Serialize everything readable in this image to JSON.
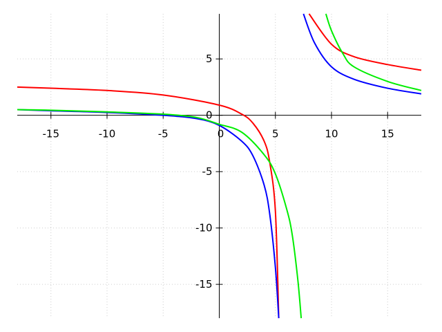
{
  "chart_data": {
    "type": "line",
    "title": "",
    "xlabel": "",
    "ylabel": "",
    "xlim": [
      -18,
      18
    ],
    "ylim": [
      -18,
      9
    ],
    "grid": true,
    "x_ticks": [
      {
        "value": -15,
        "label": "-15"
      },
      {
        "value": -10,
        "label": "-10"
      },
      {
        "value": -5,
        "label": "-5"
      },
      {
        "value": 0,
        "label": "0"
      },
      {
        "value": 5,
        "label": "5"
      },
      {
        "value": 10,
        "label": "10"
      },
      {
        "value": 15,
        "label": "15"
      }
    ],
    "y_ticks": [
      {
        "value": -15,
        "label": "-15"
      },
      {
        "value": -10,
        "label": "-10"
      },
      {
        "value": -5,
        "label": "-5"
      },
      {
        "value": 0,
        "label": "0"
      },
      {
        "value": 5,
        "label": "5"
      }
    ],
    "series": [
      {
        "color": "#ff0000",
        "x": [
          -18,
          -15,
          -10,
          -5,
          0,
          2,
          3,
          4,
          4.5,
          5,
          5.3,
          5.5,
          8,
          10,
          12,
          15,
          18
        ],
        "y": [
          2.5,
          2.4,
          2.2,
          1.8,
          0.9,
          0.1,
          -0.7,
          -2.3,
          -4.2,
          -8.5,
          -18,
          null,
          9,
          6.3,
          5.2,
          4.5,
          4.0
        ]
      },
      {
        "color": "#0000ff",
        "x": [
          -18,
          -15,
          -10,
          -5,
          -2,
          0,
          2,
          3,
          4,
          4.5,
          5,
          5.3,
          5.5,
          7.5,
          8.5,
          10,
          12,
          15,
          18
        ],
        "y": [
          0.5,
          0.4,
          0.25,
          0.0,
          -0.3,
          -0.9,
          -2.3,
          -3.6,
          -6.2,
          -8.8,
          -13.5,
          -18,
          null,
          9,
          6.4,
          4.3,
          3.2,
          2.4,
          1.9
        ]
      },
      {
        "color": "#00ee00",
        "x": [
          -18,
          -15,
          -10,
          -5,
          -2,
          0,
          2,
          4,
          5,
          6,
          6.5,
          7,
          7.3,
          7.5,
          9.5,
          10,
          11,
          12,
          15,
          18
        ],
        "y": [
          0.5,
          0.45,
          0.3,
          0.1,
          -0.2,
          -0.8,
          -1.5,
          -3.5,
          -5.2,
          -8.3,
          -10.6,
          -14.6,
          -18,
          null,
          9,
          7.5,
          5.5,
          4.3,
          3.0,
          2.2
        ]
      }
    ]
  }
}
